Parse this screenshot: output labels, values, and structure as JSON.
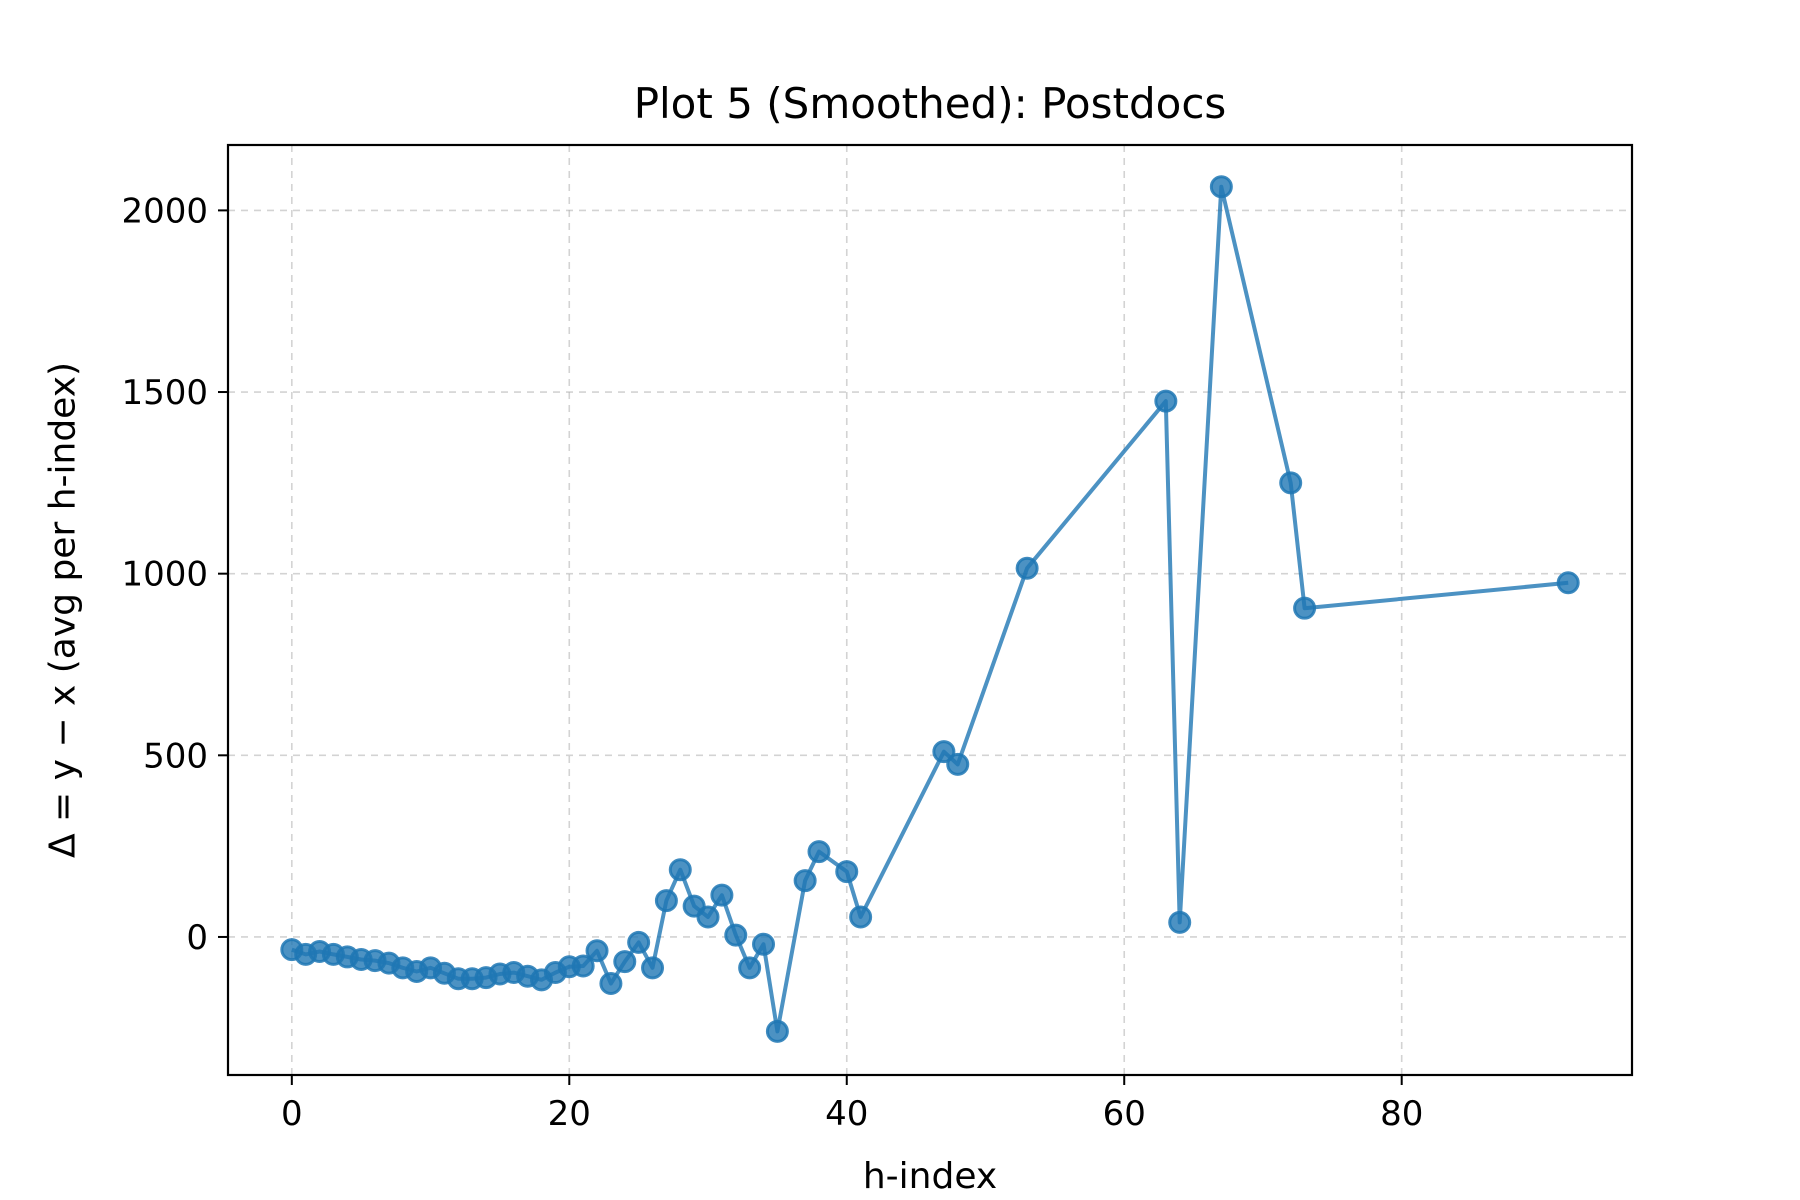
{
  "chart_data": {
    "type": "line",
    "title": "Plot 5 (Smoothed): Postdocs",
    "xlabel": "h-index",
    "ylabel": "Δ = y − x (avg per h-index)",
    "xlim": [
      -4.6,
      96.6
    ],
    "ylim": [
      -380,
      2180
    ],
    "xticks": [
      0,
      20,
      40,
      60,
      80
    ],
    "yticks": [
      0,
      500,
      1000,
      1500,
      2000
    ],
    "grid": true,
    "color": "#1f77b4",
    "series": [
      {
        "x": [
          0,
          1,
          2,
          3,
          4,
          5,
          6,
          7,
          8,
          9,
          10,
          11,
          12,
          13,
          14,
          15,
          16,
          17,
          18,
          19,
          20,
          21,
          22,
          23,
          24,
          25,
          26,
          27,
          28,
          29,
          30,
          31,
          32,
          33,
          34,
          35,
          37,
          38,
          40,
          41,
          47,
          48,
          53,
          63,
          64,
          67,
          72,
          73,
          92
        ],
        "y": [
          -35,
          -48,
          -40,
          -48,
          -55,
          -62,
          -65,
          -72,
          -85,
          -95,
          -85,
          -100,
          -115,
          -115,
          -112,
          -102,
          -98,
          -108,
          -118,
          -98,
          -82,
          -80,
          -38,
          -128,
          -68,
          -15,
          -85,
          100,
          185,
          85,
          55,
          115,
          5,
          -85,
          -20,
          -260,
          155,
          235,
          180,
          55,
          510,
          475,
          1015,
          1475,
          40,
          2065,
          1250,
          905,
          975
        ]
      }
    ]
  }
}
